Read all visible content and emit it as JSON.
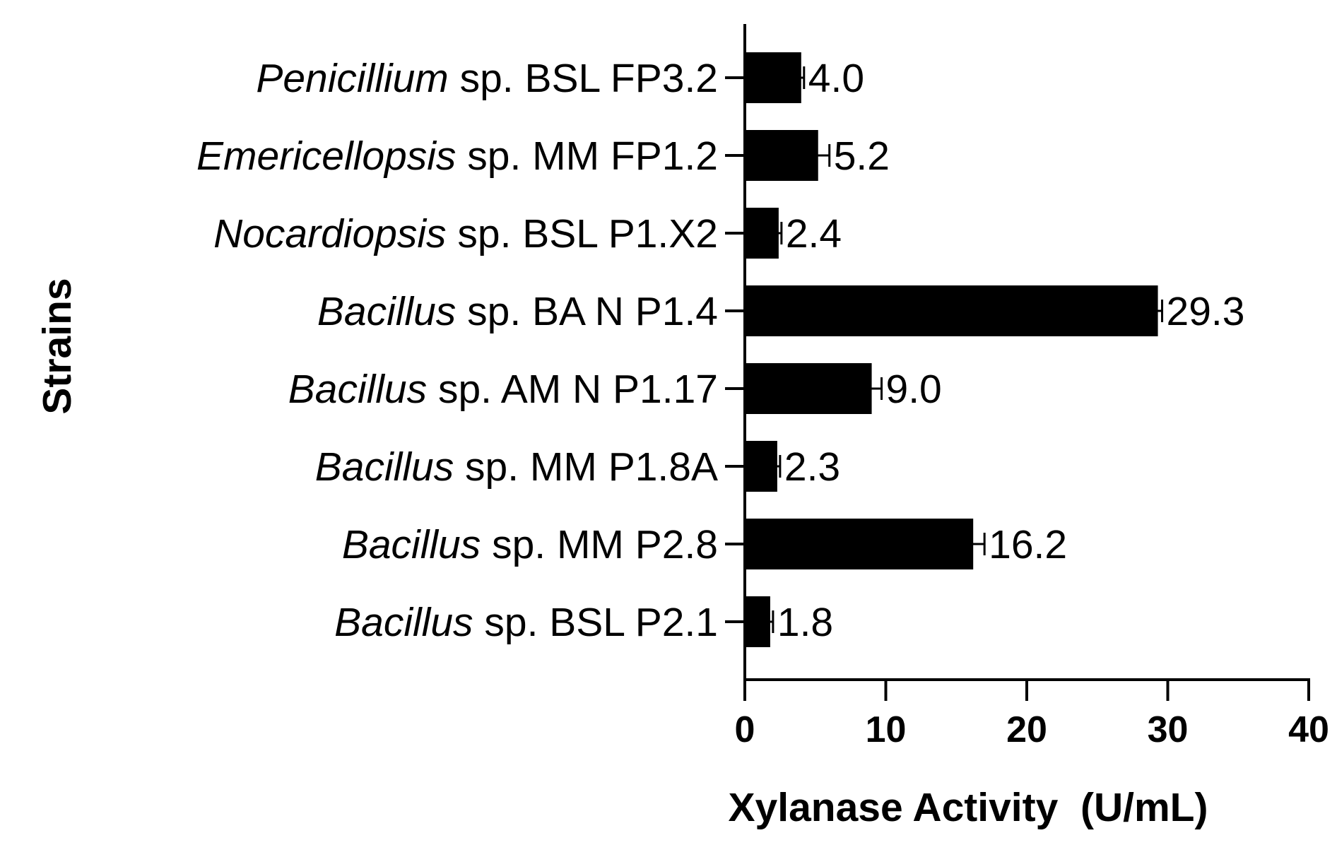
{
  "chart_data": {
    "type": "bar",
    "orientation": "horizontal",
    "title": "",
    "xlabel": "Xylanase Activity  (U/mL)",
    "ylabel": "Strains",
    "xlim": [
      0,
      40
    ],
    "xticks": [
      "0",
      "10",
      "20",
      "30",
      "40"
    ],
    "grid": false,
    "bar_color": "#000000",
    "categories": [
      {
        "genus": "Penicillium",
        "rest": " sp. BSL FP3.2"
      },
      {
        "genus": "Emericellopsis",
        "rest": " sp. MM FP1.2"
      },
      {
        "genus": "Nocardiopsis",
        "rest": " sp. BSL P1.X2"
      },
      {
        "genus": "Bacillus",
        "rest": " sp. BA N P1.4"
      },
      {
        "genus": "Bacillus",
        "rest": " sp. AM N P1.17"
      },
      {
        "genus": "Bacillus",
        "rest": " sp. MM P1.8A"
      },
      {
        "genus": "Bacillus",
        "rest": " sp. MM P2.8"
      },
      {
        "genus": "Bacillus",
        "rest": " sp. BSL P2.1"
      }
    ],
    "values": [
      4.0,
      5.2,
      2.4,
      29.3,
      9.0,
      2.3,
      16.2,
      1.8
    ],
    "value_labels": [
      "4.0",
      "5.2",
      "2.4",
      "29.3",
      "9.0",
      "2.3",
      "16.2",
      "1.8"
    ],
    "errors": [
      0.2,
      0.8,
      0.2,
      0.3,
      0.7,
      0.2,
      0.8,
      0.2
    ]
  }
}
